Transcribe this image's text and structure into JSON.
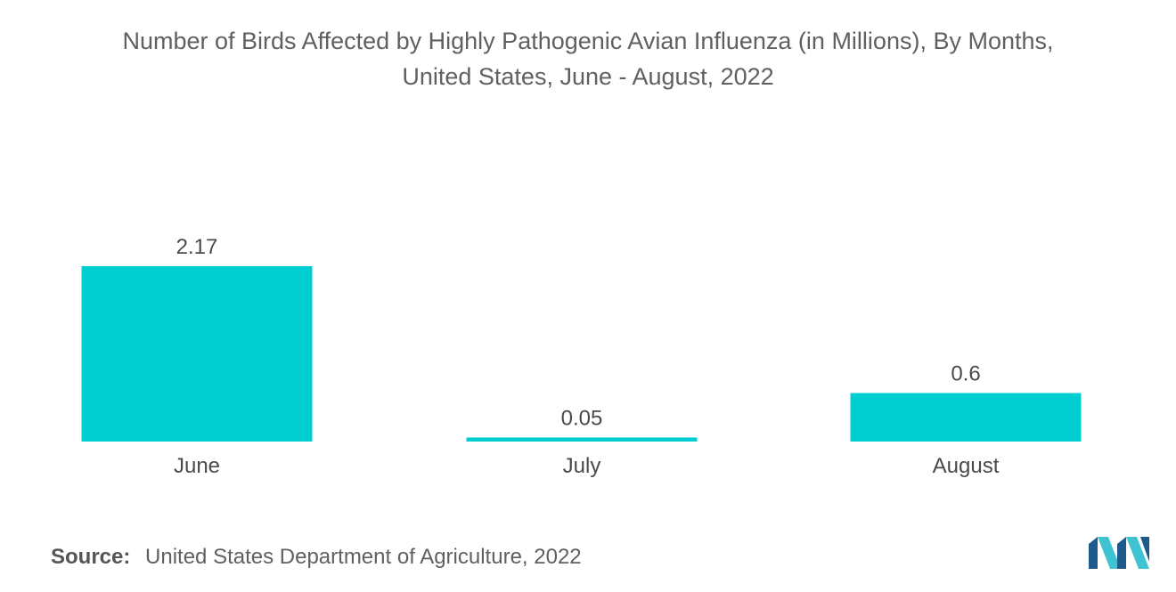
{
  "title": {
    "line1": "Number of Birds Affected by Highly Pathogenic Avian Influenza (in Millions), By Months,",
    "line2": "United States, June - August, 2022"
  },
  "source": {
    "label": "Source:",
    "text": "United States Department of Agriculture, 2022"
  },
  "colors": {
    "bar": "#00CED1",
    "logo_dark": "#1F5A8C",
    "logo_light": "#3FC3D3"
  },
  "logo": {
    "icon": "mordor-intelligence-logo-icon"
  },
  "chart_data": {
    "type": "bar",
    "categories": [
      "June",
      "July",
      "August"
    ],
    "values": [
      2.17,
      0.05,
      0.6
    ],
    "data_labels": [
      "2.17",
      "0.05",
      "0.6"
    ],
    "xlabel": "",
    "ylabel": "",
    "ylim": [
      0,
      2.17
    ],
    "grid": false,
    "legend": "none"
  }
}
